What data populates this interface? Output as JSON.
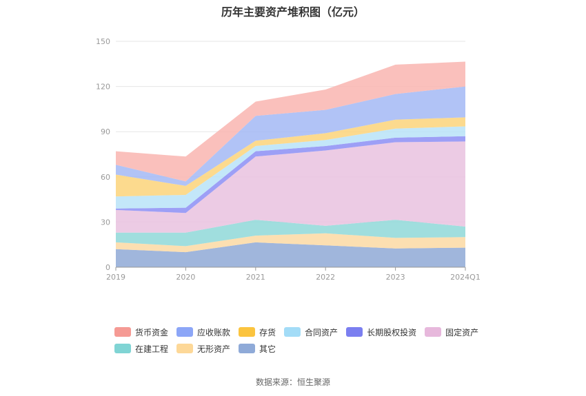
{
  "chart_data": {
    "type": "area",
    "stacked": true,
    "title": "历年主要资产堆积图（亿元）",
    "categories": [
      "2019",
      "2020",
      "2021",
      "2022",
      "2023",
      "2024Q1"
    ],
    "ylim": [
      0,
      150
    ],
    "yticks": [
      0,
      30,
      60,
      90,
      120,
      150
    ],
    "grid": true,
    "legend_position": "bottom",
    "series": [
      {
        "name": "其它",
        "color": "#8fa9d6",
        "values": [
          12.0,
          10.0,
          16.5,
          14.5,
          12.5,
          13.0
        ]
      },
      {
        "name": "无形资产",
        "color": "#fcd9a3",
        "values": [
          4.5,
          4.0,
          4.5,
          8.0,
          7.0,
          7.0
        ]
      },
      {
        "name": "在建工程",
        "color": "#8fd8d8",
        "values": [
          6.5,
          9.0,
          10.5,
          5.0,
          12.0,
          7.0
        ]
      },
      {
        "name": "固定资产",
        "color": "#e9c2df",
        "values": [
          15.0,
          13.0,
          42.0,
          50.0,
          51.5,
          56.5
        ]
      },
      {
        "name": "长期股权投资",
        "color": "#8c8ef5",
        "values": [
          1.0,
          3.5,
          3.5,
          3.0,
          3.0,
          3.5
        ]
      },
      {
        "name": "合同资产",
        "color": "#b8e3f8",
        "values": [
          8.0,
          8.5,
          3.5,
          4.0,
          6.0,
          6.5
        ]
      },
      {
        "name": "存货",
        "color": "#fcd37a",
        "values": [
          14.5,
          6.0,
          3.5,
          4.5,
          6.0,
          6.0
        ]
      },
      {
        "name": "应收账款",
        "color": "#a3b8f5",
        "values": [
          6.5,
          3.0,
          16.5,
          15.5,
          17.0,
          20.5
        ]
      },
      {
        "name": "货币资金",
        "color": "#f9b5b0",
        "values": [
          9.0,
          16.5,
          9.5,
          13.5,
          19.5,
          16.5
        ]
      }
    ]
  },
  "legend": {
    "row1": [
      {
        "name": "货币资金",
        "color": "#f59a94"
      },
      {
        "name": "应收账款",
        "color": "#8ca6f7"
      },
      {
        "name": "存货",
        "color": "#fbc43f"
      },
      {
        "name": "合同资产",
        "color": "#a3dcf7"
      },
      {
        "name": "长期股权投资",
        "color": "#7b7ff0"
      },
      {
        "name": "固定资产",
        "color": "#e7b8dc"
      }
    ],
    "row2": [
      {
        "name": "在建工程",
        "color": "#80d4d4"
      },
      {
        "name": "无形资产",
        "color": "#fdd898"
      },
      {
        "name": "其它",
        "color": "#8faad8"
      }
    ]
  },
  "source": "数据来源：恒生聚源"
}
